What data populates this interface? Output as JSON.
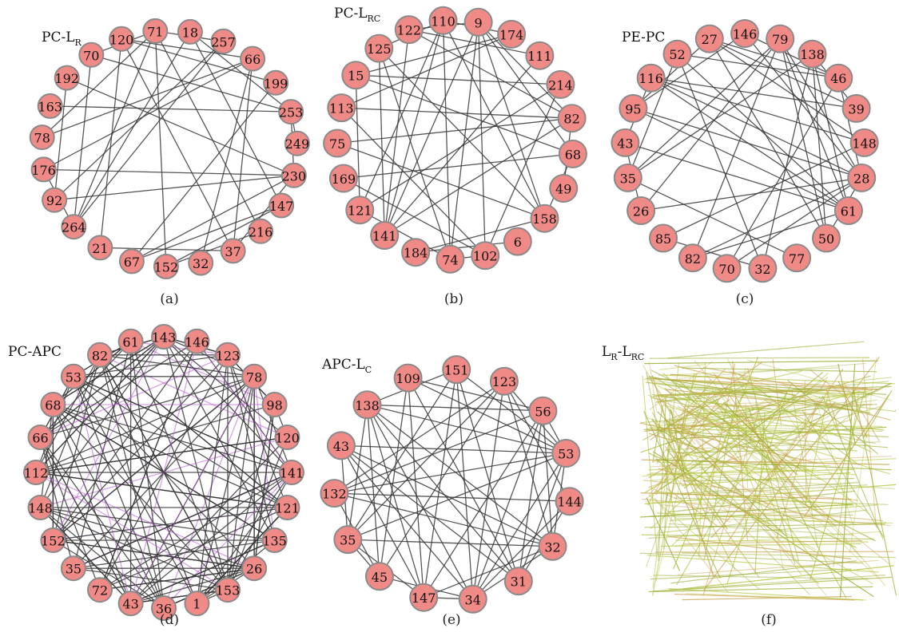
{
  "panels": [
    {
      "id": "a",
      "caption": "(a)",
      "title_main": "PC-L",
      "title_sub": "R",
      "nodes": [
        "120",
        "71",
        "18",
        "257",
        "66",
        "199",
        "253",
        "249",
        "230",
        "147",
        "216",
        "37",
        "32",
        "152",
        "67",
        "21",
        "264",
        "92",
        "176",
        "78",
        "163",
        "192",
        "70"
      ]
    },
    {
      "id": "b",
      "caption": "(b)",
      "title_main": "PC-L",
      "title_sub": "RC",
      "nodes": [
        "110",
        "9",
        "174",
        "111",
        "214",
        "82",
        "68",
        "49",
        "158",
        "6",
        "102",
        "74",
        "184",
        "141",
        "121",
        "169",
        "75",
        "113",
        "15",
        "125",
        "122"
      ]
    },
    {
      "id": "c",
      "caption": "(c)",
      "title_main": "PE-PC",
      "title_sub": "",
      "nodes": [
        "146",
        "79",
        "138",
        "46",
        "39",
        "148",
        "28",
        "61",
        "50",
        "77",
        "32",
        "70",
        "82",
        "85",
        "26",
        "35",
        "43",
        "95",
        "116",
        "52",
        "27"
      ]
    },
    {
      "id": "d",
      "caption": "(d)",
      "title_main": "PC-APC",
      "title_sub": "",
      "nodes": [
        "143",
        "146",
        "123",
        "78",
        "98",
        "120",
        "141",
        "121",
        "135",
        "26",
        "153",
        "1",
        "36",
        "43",
        "72",
        "35",
        "152",
        "148",
        "112",
        "66",
        "68",
        "53",
        "82",
        "61"
      ]
    },
    {
      "id": "e",
      "caption": "(e)",
      "title_main": "APC-L",
      "title_sub": "C",
      "nodes": [
        "151",
        "123",
        "56",
        "53",
        "144",
        "32",
        "31",
        "34",
        "147",
        "45",
        "35",
        "132",
        "43",
        "138",
        "109"
      ]
    },
    {
      "id": "f",
      "caption": "(f)",
      "title_main": "L",
      "title_sub": "R",
      "title_mid": "-L",
      "title_sub2": "RC"
    }
  ],
  "colors": {
    "node_fill": "#f08a86",
    "node_stroke": "#8a8a8a",
    "edge": "#3a3a3a",
    "hairball": [
      "#b5c43a",
      "#a9b83c",
      "#c8a04a",
      "#9aaa30"
    ]
  }
}
